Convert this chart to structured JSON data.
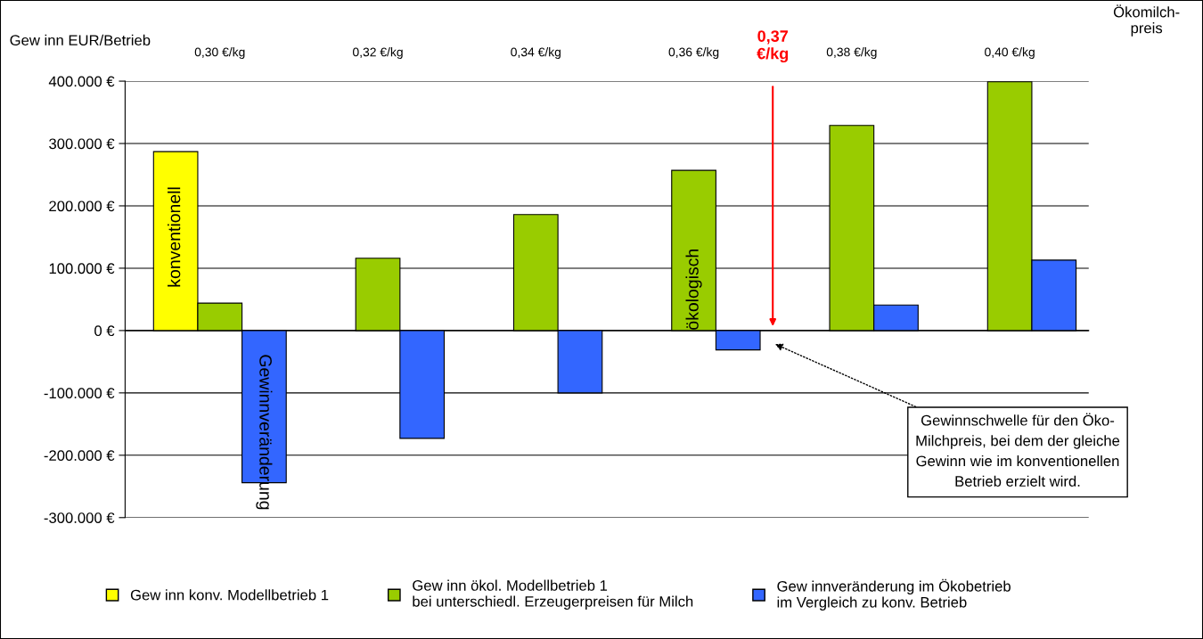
{
  "chart_data": {
    "type": "bar",
    "ylabel": "Gew inn EUR/Betrieb",
    "xlabel": "Ökomilch-\npreis",
    "categories": [
      "0,30 €/kg",
      "0,32 €/kg",
      "0,34 €/kg",
      "0,36 €/kg",
      "0,38 €/kg",
      "0,40 €/kg"
    ],
    "series": [
      {
        "name": "Gew inn konv. Modellbetrieb 1",
        "color": "#ffff00",
        "values": [
          287000,
          null,
          null,
          null,
          null,
          null
        ]
      },
      {
        "name": "Gew inn ökol. Modellbetrieb 1\nbei unterschiedl. Erzeugerpreisen für Milch",
        "color": "#99cc00",
        "values": [
          44000,
          116000,
          186000,
          257000,
          329000,
          399000
        ]
      },
      {
        "name": "Gew innveränderung im Ökobetrieb\nim Vergleich zu konv. Betrieb",
        "color": "#3366ff",
        "values": [
          -244000,
          -173000,
          -100000,
          -31000,
          41000,
          113000
        ]
      }
    ],
    "ylim": [
      -300000,
      400000
    ],
    "yticks": [
      {
        "value": -300000,
        "label": "-300.000 €"
      },
      {
        "value": -200000,
        "label": "-200.000 €"
      },
      {
        "value": -100000,
        "label": "-100.000 €"
      },
      {
        "value": 0,
        "label": "0 €"
      },
      {
        "value": 100000,
        "label": "100.000 €"
      },
      {
        "value": 200000,
        "label": "200.000 €"
      },
      {
        "value": 300000,
        "label": "300.000 €"
      },
      {
        "value": 400000,
        "label": "400.000 €"
      }
    ],
    "grid": "y",
    "legend": "bottom",
    "annotations": [
      "konventionell",
      "Gewinnveränderung",
      "ökologisch",
      "0,37\n€/kg",
      "Gewinnschwelle für den Öko-\nMilchpreis, bei dem der gleiche\nGewinn wie im konventionellen\nBetrieb erzielt wird."
    ]
  }
}
